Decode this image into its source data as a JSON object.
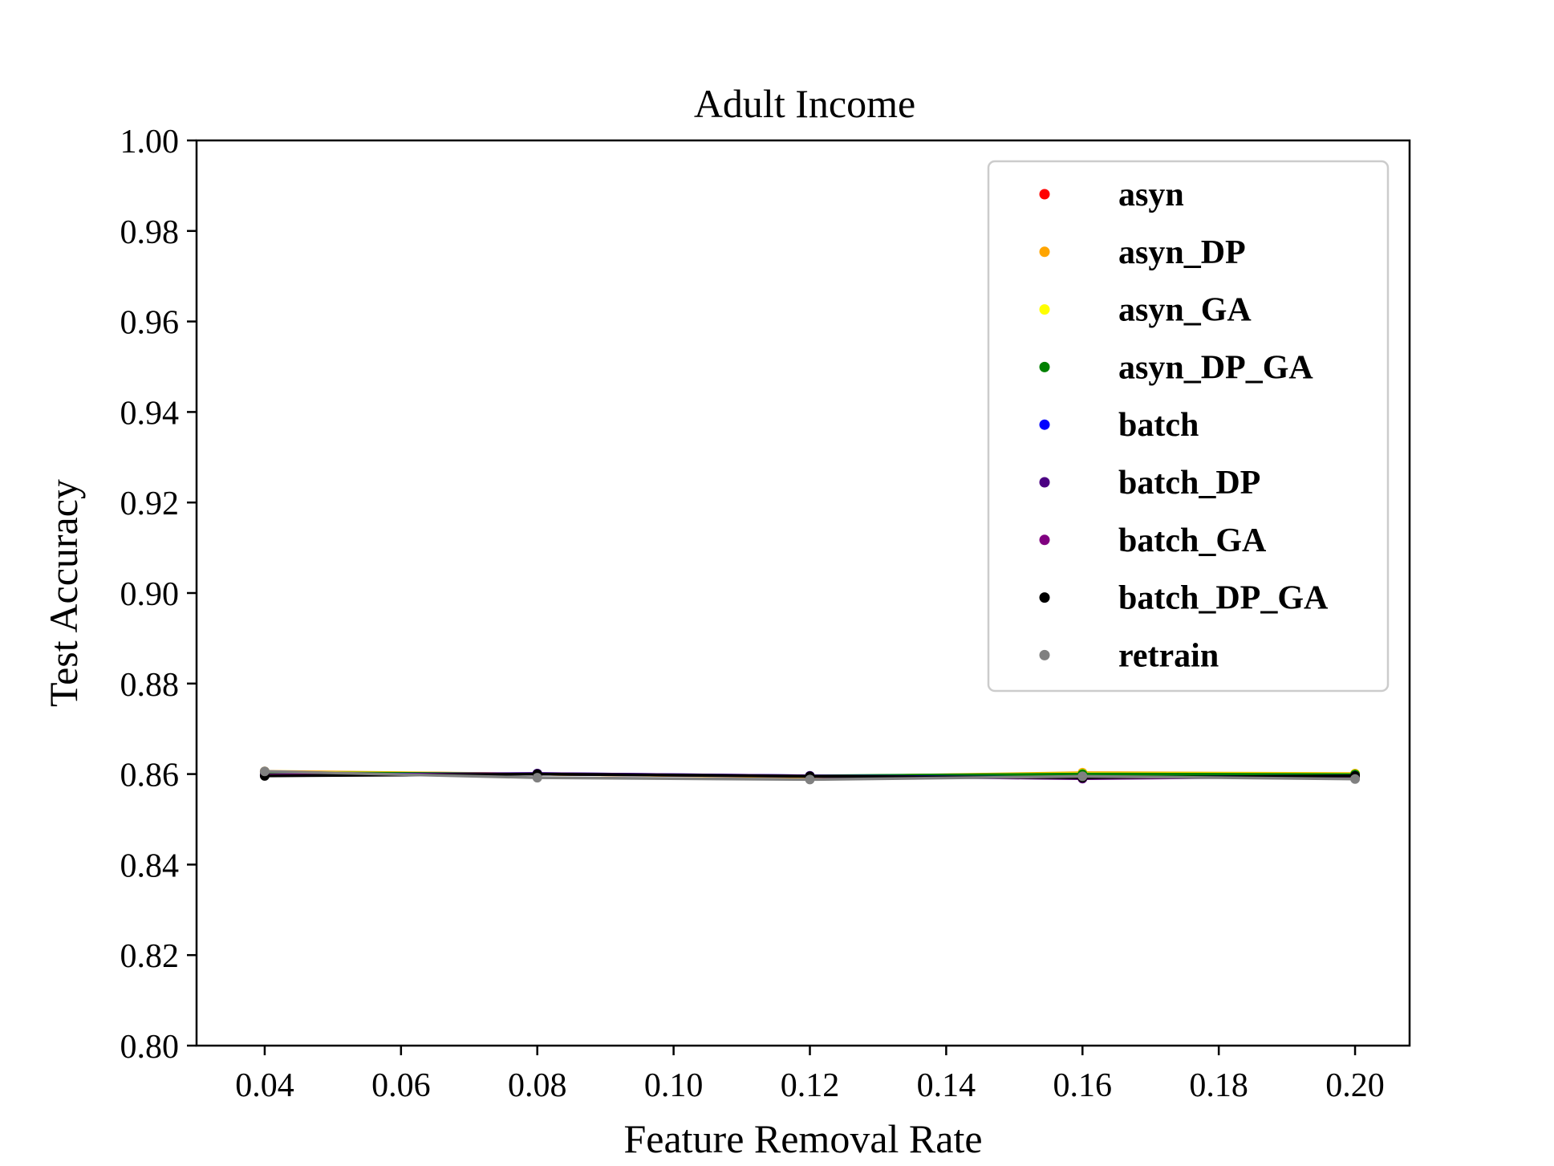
{
  "chart_data": {
    "type": "line",
    "title": "Adult Income",
    "xlabel": "Feature Removal Rate",
    "ylabel": "Test Accuracy",
    "xlim": [
      0.03,
      0.208
    ],
    "ylim": [
      0.8,
      1.0
    ],
    "x": [
      0.04,
      0.08,
      0.12,
      0.16,
      0.2
    ],
    "xticks": [
      "0.04",
      "0.06",
      "0.08",
      "0.10",
      "0.12",
      "0.14",
      "0.16",
      "0.18",
      "0.20"
    ],
    "xtick_values": [
      0.04,
      0.06,
      0.08,
      0.1,
      0.12,
      0.14,
      0.16,
      0.18,
      0.2
    ],
    "yticks": [
      "0.80",
      "0.82",
      "0.84",
      "0.86",
      "0.88",
      "0.90",
      "0.92",
      "0.94",
      "0.96",
      "0.98",
      "1.00"
    ],
    "ytick_values": [
      0.8,
      0.82,
      0.84,
      0.86,
      0.88,
      0.9,
      0.92,
      0.94,
      0.96,
      0.98,
      1.0
    ],
    "grid": false,
    "legend_position": "top-right",
    "series": [
      {
        "name": "asyn",
        "color": "#ff0000",
        "values": [
          0.8605,
          0.86,
          0.8595,
          0.86,
          0.86
        ]
      },
      {
        "name": "asyn_DP",
        "color": "#ffa500",
        "values": [
          0.8606,
          0.86,
          0.8594,
          0.8603,
          0.8601
        ]
      },
      {
        "name": "asyn_GA",
        "color": "#ffff00",
        "values": [
          0.8604,
          0.86,
          0.8595,
          0.8601,
          0.86
        ]
      },
      {
        "name": "asyn_DP_GA",
        "color": "#008000",
        "values": [
          0.8603,
          0.86,
          0.8596,
          0.86,
          0.8599
        ]
      },
      {
        "name": "batch",
        "color": "#0000ff",
        "values": [
          0.8598,
          0.8601,
          0.8596,
          0.8592,
          0.8596
        ]
      },
      {
        "name": "batch_DP",
        "color": "#4b0082",
        "values": [
          0.8597,
          0.8601,
          0.8596,
          0.859,
          0.8595
        ]
      },
      {
        "name": "batch_GA",
        "color": "#800080",
        "values": [
          0.8598,
          0.86,
          0.8595,
          0.8591,
          0.8595
        ]
      },
      {
        "name": "batch_DP_GA",
        "color": "#000000",
        "values": [
          0.8596,
          0.86,
          0.8595,
          0.8592,
          0.8596
        ]
      },
      {
        "name": "retrain",
        "color": "#808080",
        "values": [
          0.8606,
          0.8592,
          0.8588,
          0.8595,
          0.8589
        ]
      }
    ]
  }
}
